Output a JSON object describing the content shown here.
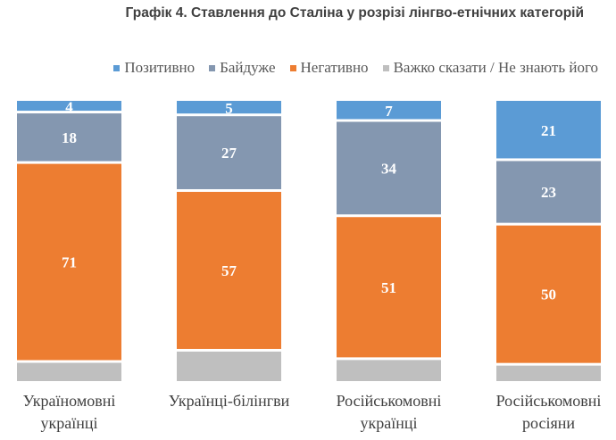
{
  "chart_data": {
    "type": "bar",
    "stacked": true,
    "percent_stacked": true,
    "title": "Графік 4. Ставлення до Сталіна у розрізі лінгво-етнічних категорій",
    "xlabel": "",
    "ylabel": "",
    "ylim": [
      0,
      100
    ],
    "grid": false,
    "legend_position": "top-right",
    "categories": [
      [
        "Україномовні",
        "українці"
      ],
      [
        "Українці-білінгви"
      ],
      [
        "Російськомовні",
        "українці"
      ],
      [
        "Російськомовні",
        "росіяни"
      ]
    ],
    "series": [
      {
        "name": "Позитивно",
        "color": "#5b9bd5",
        "values": [
          4,
          5,
          7,
          21
        ],
        "labeled": true
      },
      {
        "name": "Байдуже",
        "color": "#8497b0",
        "values": [
          18,
          27,
          34,
          23
        ],
        "labeled": true
      },
      {
        "name": "Негативно",
        "color": "#ed7d31",
        "values": [
          71,
          57,
          51,
          50
        ],
        "labeled": true
      },
      {
        "name": "Важко сказати / Не знають його",
        "color": "#bfbfbf",
        "values": [
          7,
          11,
          8,
          6
        ],
        "labeled": false
      }
    ]
  }
}
